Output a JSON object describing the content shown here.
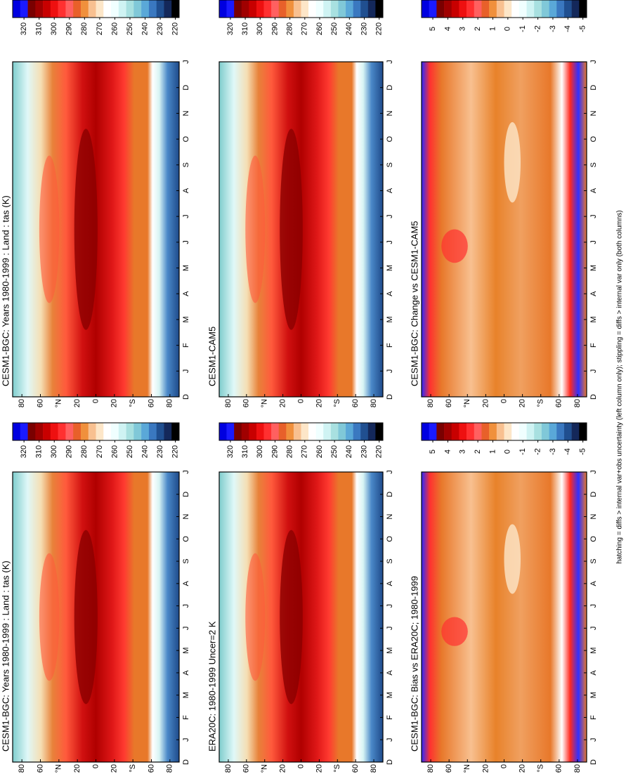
{
  "chart_data": [
    {
      "type": "contour",
      "title": "CESM1-BGC: Years 1980-1999 : Land : tas (K)",
      "x": [
        "D",
        "J",
        "F",
        "M",
        "A",
        "M",
        "J",
        "J",
        "A",
        "S",
        "O",
        "N",
        "D",
        "J"
      ],
      "ylim": [
        90,
        -90
      ],
      "yticks": [
        80,
        60,
        {
          "value": 40,
          "label": "°N"
        },
        20,
        0,
        {
          "value": -20,
          "label": "20"
        },
        {
          "value": -40,
          "label": "°S"
        },
        {
          "value": -60,
          "label": "60"
        },
        {
          "value": -80,
          "label": "80"
        }
      ],
      "cticks": [
        320,
        310,
        300,
        290,
        280,
        270,
        260,
        250,
        240,
        230,
        220
      ],
      "colors": [
        "#0000e0",
        "#1a1aff",
        "#7a0000",
        "#a00000",
        "#c80000",
        "#ee1010",
        "#ff3030",
        "#ff6060",
        "#e8602a",
        "#f0903c",
        "#f8c090",
        "#fde6c8",
        "#ffffff",
        "#f0ffff",
        "#cff3f3",
        "#a8e0e0",
        "#80c8d8",
        "#5aa8d8",
        "#3a78c0",
        "#204f90",
        "#14285a",
        "#000000"
      ]
    },
    {
      "type": "contour",
      "title": "CESM1-BGC: Years 1980-1999 : Land : tas (K)",
      "x": [
        "D",
        "J",
        "F",
        "M",
        "A",
        "M",
        "J",
        "J",
        "A",
        "S",
        "O",
        "N",
        "D",
        "J"
      ],
      "ylim": [
        90,
        -90
      ],
      "yticks": [
        80,
        60,
        {
          "value": 40,
          "label": "°N"
        },
        20,
        0,
        {
          "value": -20,
          "label": "20"
        },
        {
          "value": -40,
          "label": "°S"
        },
        {
          "value": -60,
          "label": "60"
        },
        {
          "value": -80,
          "label": "80"
        }
      ],
      "cticks": [
        320,
        310,
        300,
        290,
        280,
        270,
        260,
        250,
        240,
        230,
        220
      ],
      "colors": [
        "#0000e0",
        "#1a1aff",
        "#7a0000",
        "#a00000",
        "#c80000",
        "#ee1010",
        "#ff3030",
        "#ff6060",
        "#e8602a",
        "#f0903c",
        "#f8c090",
        "#fde6c8",
        "#ffffff",
        "#f0ffff",
        "#cff3f3",
        "#a8e0e0",
        "#80c8d8",
        "#5aa8d8",
        "#3a78c0",
        "#204f90",
        "#14285a",
        "#000000"
      ]
    },
    {
      "type": "contour",
      "title": "ERA20C: 1980-1999 Uncer=2 K",
      "x": [
        "D",
        "J",
        "F",
        "M",
        "A",
        "M",
        "J",
        "J",
        "A",
        "S",
        "O",
        "N",
        "D",
        "J"
      ],
      "ylim": [
        90,
        -90
      ],
      "yticks": [
        80,
        60,
        {
          "value": 40,
          "label": "°N"
        },
        20,
        0,
        {
          "value": -20,
          "label": "20"
        },
        {
          "value": -40,
          "label": "°S"
        },
        {
          "value": -60,
          "label": "60"
        },
        {
          "value": -80,
          "label": "80"
        }
      ],
      "cticks": [
        320,
        310,
        300,
        290,
        280,
        270,
        260,
        250,
        240,
        230,
        220
      ],
      "colors": [
        "#0000e0",
        "#1a1aff",
        "#7a0000",
        "#a00000",
        "#c80000",
        "#ee1010",
        "#ff3030",
        "#ff6060",
        "#e8602a",
        "#f0903c",
        "#f8c090",
        "#fde6c8",
        "#ffffff",
        "#f0ffff",
        "#cff3f3",
        "#a8e0e0",
        "#80c8d8",
        "#5aa8d8",
        "#3a78c0",
        "#204f90",
        "#14285a",
        "#000000"
      ]
    },
    {
      "type": "contour",
      "title": "CESM1-CAM5",
      "x": [
        "D",
        "J",
        "F",
        "M",
        "A",
        "M",
        "J",
        "J",
        "A",
        "S",
        "O",
        "N",
        "D",
        "J"
      ],
      "ylim": [
        90,
        -90
      ],
      "yticks": [
        80,
        60,
        {
          "value": 40,
          "label": "°N"
        },
        20,
        0,
        {
          "value": -20,
          "label": "20"
        },
        {
          "value": -40,
          "label": "°S"
        },
        {
          "value": -60,
          "label": "60"
        },
        {
          "value": -80,
          "label": "80"
        }
      ],
      "cticks": [
        320,
        310,
        300,
        290,
        280,
        270,
        260,
        250,
        240,
        230,
        220
      ],
      "colors": [
        "#0000e0",
        "#1a1aff",
        "#7a0000",
        "#a00000",
        "#c80000",
        "#ee1010",
        "#ff3030",
        "#ff6060",
        "#e8602a",
        "#f0903c",
        "#f8c090",
        "#fde6c8",
        "#ffffff",
        "#f0ffff",
        "#cff3f3",
        "#a8e0e0",
        "#80c8d8",
        "#5aa8d8",
        "#3a78c0",
        "#204f90",
        "#14285a",
        "#000000"
      ]
    },
    {
      "type": "contour",
      "title": "CESM1-BGC: Bias vs ERA20C; 1980-1999",
      "x": [
        "D",
        "J",
        "F",
        "M",
        "A",
        "M",
        "J",
        "J",
        "A",
        "S",
        "O",
        "N",
        "D",
        "J"
      ],
      "ylim": [
        90,
        -90
      ],
      "yticks": [
        80,
        60,
        {
          "value": 40,
          "label": "°N"
        },
        20,
        0,
        {
          "value": -20,
          "label": "20"
        },
        {
          "value": -40,
          "label": "°S"
        },
        {
          "value": -60,
          "label": "60"
        },
        {
          "value": -80,
          "label": "80"
        }
      ],
      "cticks": [
        5,
        4,
        3,
        2,
        1,
        0,
        -1,
        -2,
        -3,
        -4,
        -5
      ],
      "colors": [
        "#0000e0",
        "#1a1aff",
        "#7a0000",
        "#a00000",
        "#c80000",
        "#ee1010",
        "#ff3030",
        "#ff6060",
        "#e8602a",
        "#f0903c",
        "#f8c090",
        "#fde6c8",
        "#ffffff",
        "#f0ffff",
        "#cff3f3",
        "#a8e0e0",
        "#80c8d8",
        "#5aa8d8",
        "#3a78c0",
        "#204f90",
        "#14285a",
        "#000000"
      ]
    },
    {
      "type": "contour",
      "title": "CESM1-BGC: Change vs CESM1-CAM5",
      "x": [
        "D",
        "J",
        "F",
        "M",
        "A",
        "M",
        "J",
        "J",
        "A",
        "S",
        "O",
        "N",
        "D",
        "J"
      ],
      "ylim": [
        90,
        -90
      ],
      "yticks": [
        80,
        60,
        {
          "value": 40,
          "label": "°N"
        },
        20,
        0,
        {
          "value": -20,
          "label": "20"
        },
        {
          "value": -40,
          "label": "°S"
        },
        {
          "value": -60,
          "label": "60"
        },
        {
          "value": -80,
          "label": "80"
        }
      ],
      "cticks": [
        5,
        4,
        3,
        2,
        1,
        0,
        -1,
        -2,
        -3,
        -4,
        -5
      ],
      "colors": [
        "#0000e0",
        "#1a1aff",
        "#7a0000",
        "#a00000",
        "#c80000",
        "#ee1010",
        "#ff3030",
        "#ff6060",
        "#e8602a",
        "#f0903c",
        "#f8c090",
        "#fde6c8",
        "#ffffff",
        "#f0ffff",
        "#cff3f3",
        "#a8e0e0",
        "#80c8d8",
        "#5aa8d8",
        "#3a78c0",
        "#204f90",
        "#14285a",
        "#000000"
      ]
    }
  ],
  "note": "hatching = diffs > internal var+obs uncertainty (left column only); stippling = diffs > internal var only (both columns)"
}
